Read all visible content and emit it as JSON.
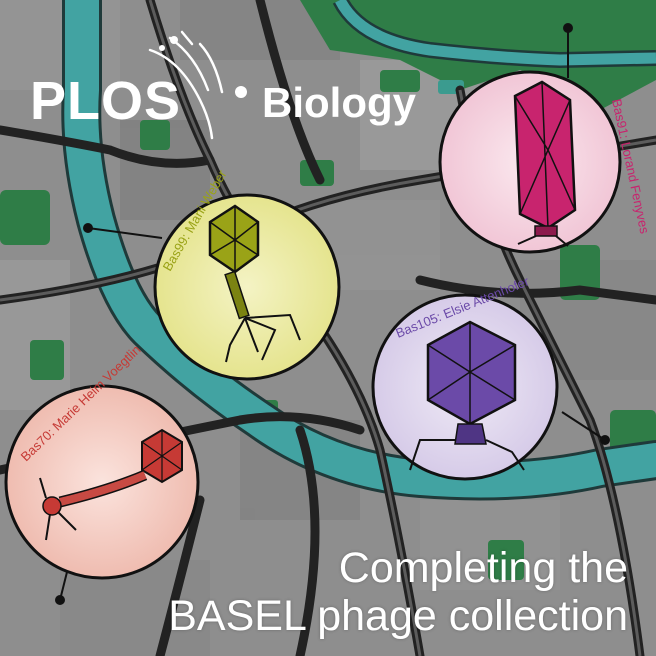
{
  "journal": {
    "brand": "PLOS",
    "name": "Biology"
  },
  "headline": {
    "line1": "Completing the",
    "line2": "BASEL phage collection"
  },
  "phages": [
    {
      "label": "Bas99: Mani Weber",
      "color": "#9aa317",
      "bubble": "#f2f1b8"
    },
    {
      "label": "Bas91: Lorand Fenyves",
      "color": "#c8246e",
      "bubble": "#f6d9e3"
    },
    {
      "label": "Bas105: Elsie Attenhofer",
      "color": "#6b4aa8",
      "bubble": "#e3dcef"
    },
    {
      "label": "Bas70: Marie Heim Voegtlin",
      "color": "#c63a35",
      "bubble": "#f6d6cf"
    }
  ],
  "colors": {
    "land": "#8c8c8c",
    "roads": "#2a2a2a",
    "river": "#3f9c9c",
    "parks": "#2f7d47"
  }
}
